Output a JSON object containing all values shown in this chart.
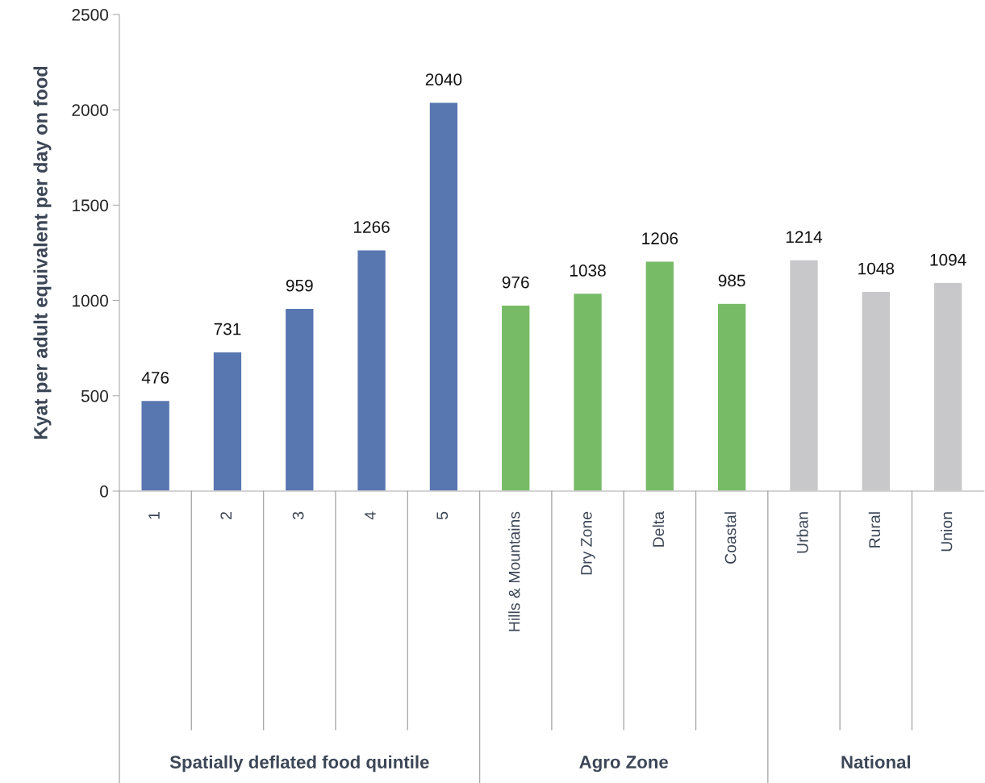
{
  "chart_data": {
    "type": "bar",
    "ylabel": "Kyat per adult equivalent per day on food",
    "categories": [
      "1",
      "2",
      "3",
      "4",
      "5",
      "Hills & Mountains",
      "Dry Zone",
      "Delta",
      "Coastal",
      "Urban",
      "Rural",
      "Union"
    ],
    "values": [
      476,
      731,
      959,
      1266,
      2040,
      976,
      1038,
      1206,
      985,
      1214,
      1048,
      1094
    ],
    "colors": [
      "#5876b0",
      "#5876b0",
      "#5876b0",
      "#5876b0",
      "#5876b0",
      "#77bb66",
      "#77bb66",
      "#77bb66",
      "#77bb66",
      "#c8c8ca",
      "#c8c8ca",
      "#c8c8ca"
    ],
    "annotations": [
      "Spatially deflated food quintile",
      "Agro Zone",
      "National"
    ],
    "ylim": [
      0,
      2500
    ],
    "yticks": [
      0,
      500,
      1000,
      1500,
      2000,
      2500
    ],
    "data_labels": true,
    "grid": false,
    "legend": false
  }
}
